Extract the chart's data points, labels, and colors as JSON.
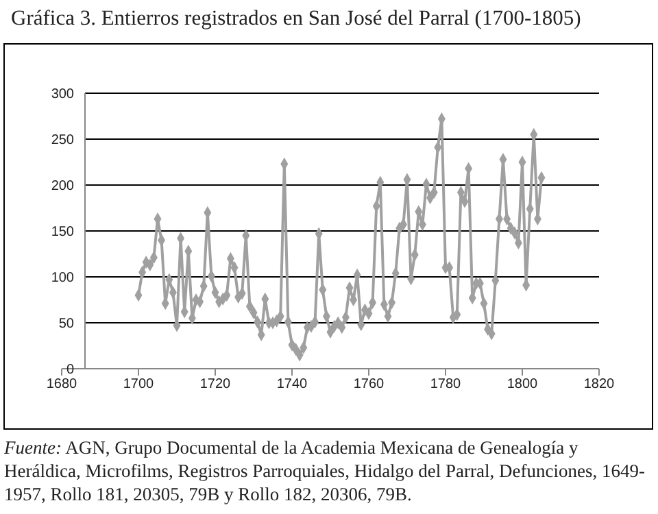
{
  "chart_data": {
    "type": "line",
    "title": "Gráfica 3. Entierros registrados en San José del Parral (1700-1805)",
    "annotations": [
      "Fuente: AGN, Grupo Documental de la Academia Mexicana de Genealogía y Heráldica, Microfilms, Registros Parroquiales, Hidalgo del Parral, Defunciones, 1649-1957, Rollo 181, 20305, 79B y Rollo 182, 20306, 79B."
    ],
    "x": [
      1700,
      1701,
      1702,
      1703,
      1704,
      1705,
      1706,
      1707,
      1708,
      1709,
      1710,
      1711,
      1712,
      1713,
      1714,
      1715,
      1716,
      1717,
      1718,
      1719,
      1720,
      1721,
      1722,
      1723,
      1724,
      1725,
      1726,
      1727,
      1728,
      1729,
      1730,
      1731,
      1732,
      1733,
      1734,
      1735,
      1736,
      1737,
      1738,
      1739,
      1740,
      1741,
      1742,
      1743,
      1744,
      1745,
      1746,
      1747,
      1748,
      1749,
      1750,
      1751,
      1752,
      1753,
      1754,
      1755,
      1756,
      1757,
      1758,
      1759,
      1760,
      1761,
      1762,
      1763,
      1764,
      1765,
      1766,
      1767,
      1768,
      1769,
      1770,
      1771,
      1772,
      1773,
      1774,
      1775,
      1776,
      1777,
      1778,
      1779,
      1780,
      1781,
      1782,
      1783,
      1784,
      1785,
      1786,
      1787,
      1788,
      1789,
      1790,
      1791,
      1792,
      1793,
      1794,
      1795,
      1796,
      1797,
      1798,
      1799,
      1800,
      1801,
      1802,
      1803,
      1804,
      1805
    ],
    "series": [
      {
        "color": "#a0a0a0",
        "values": [
          80,
          105,
          116,
          113,
          121,
          163,
          140,
          71,
          97,
          83,
          47,
          142,
          62,
          128,
          55,
          75,
          73,
          90,
          170,
          101,
          83,
          73,
          76,
          80,
          120,
          110,
          78,
          82,
          145,
          68,
          61,
          51,
          37,
          76,
          50,
          50,
          52,
          57,
          223,
          51,
          26,
          21,
          15,
          23,
          45,
          46,
          51,
          147,
          86,
          57,
          40,
          46,
          50,
          45,
          56,
          88,
          75,
          102,
          48,
          64,
          60,
          72,
          177,
          203,
          70,
          57,
          72,
          104,
          153,
          157,
          206,
          98,
          124,
          171,
          157,
          201,
          186,
          192,
          241,
          272,
          110,
          110,
          56,
          59,
          192,
          182,
          218,
          77,
          93,
          93,
          71,
          43,
          38,
          96,
          163,
          228,
          163,
          153,
          148,
          137,
          225,
          91,
          174,
          255,
          163,
          208
        ]
      }
    ],
    "xlim": [
      1680,
      1820
    ],
    "xticks": [
      1680,
      1700,
      1720,
      1740,
      1760,
      1780,
      1800,
      1820
    ],
    "ylim": [
      0,
      300
    ],
    "yticks": [
      0,
      50,
      100,
      150,
      200,
      250,
      300
    ],
    "grid": "y",
    "marker": "diamond",
    "line_style": "solid"
  }
}
